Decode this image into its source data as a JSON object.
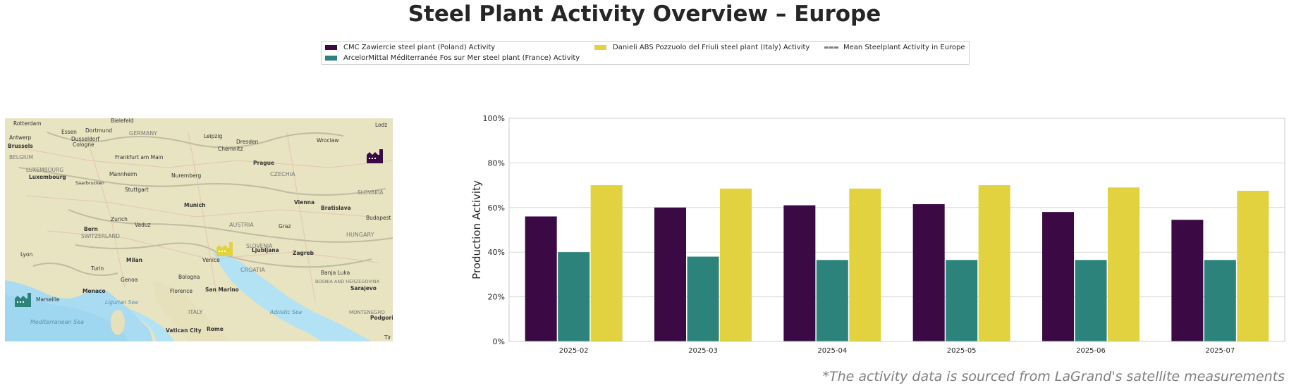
{
  "title": "Steel Plant Activity Overview – Europe",
  "legend": {
    "items": [
      {
        "label": "CMC Zawiercie steel plant (Poland) Activity",
        "color": "#3b0a45",
        "kind": "bar"
      },
      {
        "label": "Danieli ABS Pozzuolo del Friuli steel plant (Italy) Activity",
        "color": "#e2d23f",
        "kind": "bar"
      },
      {
        "label": "Mean Steelplant Activity in Europe",
        "color": "#808080",
        "kind": "dashed-line"
      },
      {
        "label": "ArcelorMittal Méditerranée Fos sur Mer steel plant (France) Activity",
        "color": "#2b837c",
        "kind": "bar"
      }
    ]
  },
  "map": {
    "labels": [
      "Rotterdam",
      "Bielefeld",
      "Essen",
      "Dortmund",
      "GERMANY",
      "Antwerp",
      "Dusseldorf",
      "Cologne",
      "Brussels",
      "BELGIUM",
      "Leipzig",
      "Dresden",
      "Wroclaw",
      "Lodz",
      "Frankfurt am Main",
      "Chemnitz",
      "Prague",
      "LUXEMBOURG",
      "Luxembourg",
      "Mannheim",
      "Nuremberg",
      "Saarbrucken",
      "Stuttgart",
      "CZECHIA",
      "SLOVAKIA",
      "Munich",
      "Vienna",
      "Bratislava",
      "Budapest",
      "Zurich",
      "Vaduz",
      "AUSTRIA",
      "Graz",
      "HUNGARY",
      "Bern",
      "SWITZERLAND",
      "SLOVENIA",
      "Ljubljana",
      "Zagreb",
      "Lyon",
      "Milan",
      "Venice",
      "CROATIA",
      "Turin",
      "Bologna",
      "Banja Luka",
      "BOSNIA AND HERZEGOVINA",
      "Genoa",
      "Sarajevo",
      "Marseille",
      "Monaco",
      "Florence",
      "San Marino",
      "Ligurian Sea",
      "ITALY",
      "Adriatic Sea",
      "MONTENEGRO",
      "Podgorica",
      "Mediterranean Sea",
      "Vatican City",
      "Rome",
      "Tir"
    ],
    "markers": [
      {
        "name": "CMC Zawiercie steel plant",
        "color": "#3b0a45"
      },
      {
        "name": "Danieli ABS Pozzuolo del Friuli steel plant",
        "color": "#e2d23f"
      },
      {
        "name": "ArcelorMittal Méditerranée Fos sur Mer steel plant",
        "color": "#2b837c"
      }
    ]
  },
  "chart_data": {
    "type": "bar",
    "categories": [
      "2025-02",
      "2025-03",
      "2025-04",
      "2025-05",
      "2025-06",
      "2025-07"
    ],
    "series": [
      {
        "name": "CMC Zawiercie steel plant (Poland) Activity",
        "color": "#3b0a45",
        "values": [
          56,
          60,
          61,
          61.5,
          58,
          54.5
        ]
      },
      {
        "name": "ArcelorMittal Méditerranée Fos sur Mer steel plant (France) Activity",
        "color": "#2b837c",
        "values": [
          40,
          38,
          36.5,
          36.5,
          36.5,
          36.5
        ]
      },
      {
        "name": "Danieli ABS Pozzuolo del Friuli steel plant (Italy) Activity",
        "color": "#e2d23f",
        "values": [
          70,
          68.5,
          68.5,
          70,
          69,
          67.5
        ]
      }
    ],
    "mean_series": {
      "name": "Mean Steelplant Activity in Europe",
      "values": []
    },
    "ylabel": "Production Activity",
    "xlabel": "",
    "ylim": [
      0,
      100
    ],
    "yticks": [
      0,
      20,
      40,
      60,
      80,
      100
    ],
    "ytick_labels": [
      "0%",
      "20%",
      "40%",
      "60%",
      "80%",
      "100%"
    ],
    "grid": true,
    "legend_position": "top-center"
  },
  "footer": {
    "source_note": "*The activity data is sourced from LaGrand's satellite measurements"
  }
}
